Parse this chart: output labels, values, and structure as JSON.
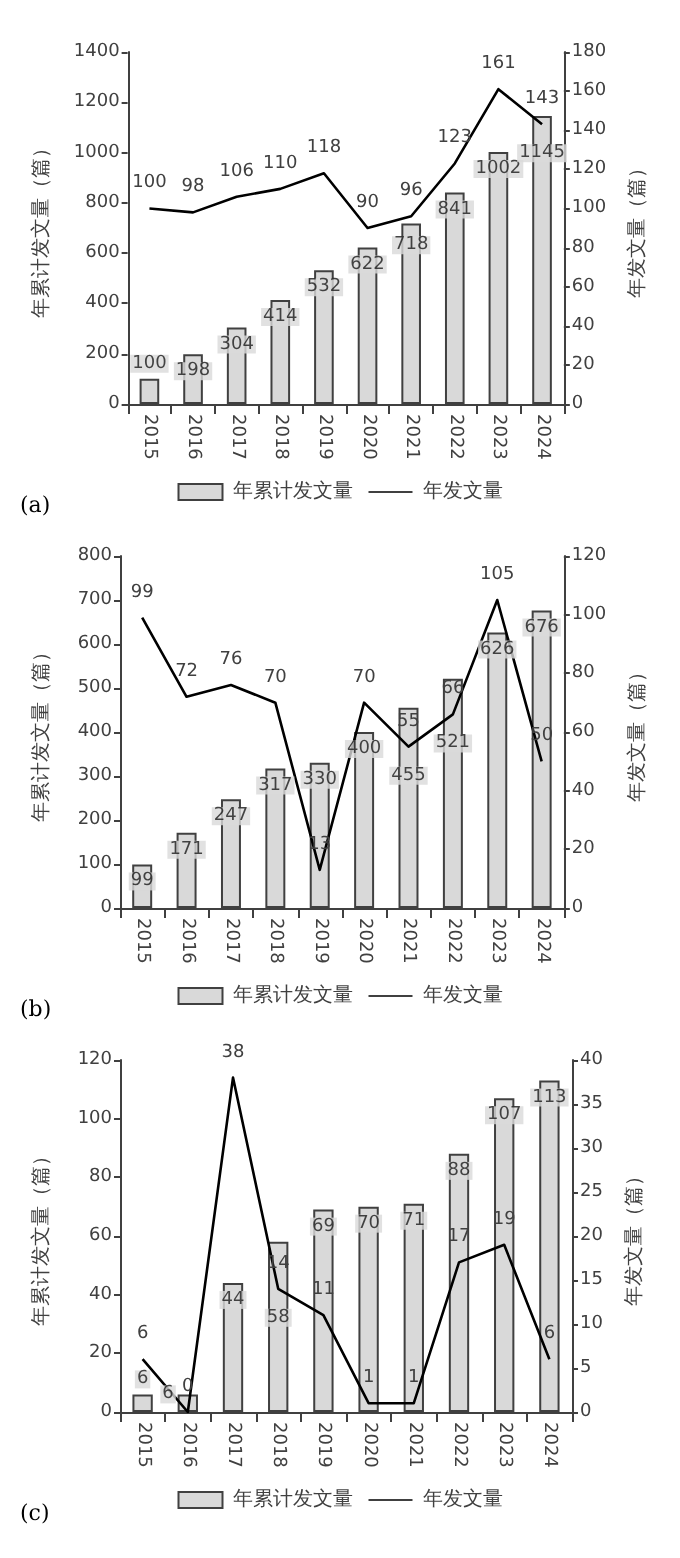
{
  "chart_data": [
    {
      "type": "bar",
      "categories": [
        "2015",
        "2016",
        "2017",
        "2018",
        "2019",
        "2020",
        "2021",
        "2022",
        "2023",
        "2024"
      ],
      "ylabel": "年累计发文量（篇）",
      "y2label": "年发文量（篇）",
      "ylim": [
        0,
        1400
      ],
      "yticks": [
        0,
        200,
        400,
        600,
        800,
        1000,
        1200,
        1400
      ],
      "y2lim": [
        0,
        180
      ],
      "y2ticks": [
        0,
        20,
        40,
        60,
        80,
        100,
        120,
        140,
        160,
        180
      ],
      "legend": "bottom",
      "grid": false,
      "data_labels": true,
      "marker": "none",
      "annotations": [
        "(a)"
      ],
      "series": [
        {
          "name": "年累计发文量",
          "type": "bar",
          "color": "#d9d9d9",
          "values": [
            100,
            198,
            304,
            414,
            532,
            622,
            718,
            841,
            1002,
            1145
          ]
        },
        {
          "name": "年发文量",
          "type": "line",
          "axis": "y2",
          "color": "#000000",
          "values": [
            100,
            98,
            106,
            110,
            118,
            90,
            96,
            123,
            161,
            143
          ]
        }
      ]
    },
    {
      "type": "bar",
      "categories": [
        "2015",
        "2016",
        "2017",
        "2018",
        "2019",
        "2020",
        "2021",
        "2022",
        "2023",
        "2024"
      ],
      "ylabel": "年累计发文量（篇）",
      "y2label": "年发文量（篇）",
      "ylim": [
        0,
        800
      ],
      "yticks": [
        0,
        100,
        200,
        300,
        400,
        500,
        600,
        700,
        800
      ],
      "y2lim": [
        0,
        120
      ],
      "y2ticks": [
        0,
        20,
        40,
        60,
        80,
        100,
        120
      ],
      "legend": "bottom",
      "grid": false,
      "data_labels": true,
      "marker": "none",
      "annotations": [
        "(b)"
      ],
      "series": [
        {
          "name": "年累计发文量",
          "type": "bar",
          "color": "#d9d9d9",
          "values": [
            99,
            171,
            247,
            317,
            330,
            400,
            455,
            521,
            626,
            676
          ]
        },
        {
          "name": "年发文量",
          "type": "line",
          "axis": "y2",
          "color": "#000000",
          "values": [
            99,
            72,
            76,
            70,
            13,
            70,
            55,
            66,
            105,
            50
          ]
        }
      ]
    },
    {
      "type": "bar",
      "categories": [
        "2015",
        "2016",
        "2017",
        "2018",
        "2019",
        "2020",
        "2021",
        "2022",
        "2023",
        "2024"
      ],
      "ylabel": "年累计发文量（篇）",
      "y2label": "年发文量（篇）",
      "ylim": [
        0,
        120
      ],
      "yticks": [
        0,
        20,
        40,
        60,
        80,
        100,
        120
      ],
      "y2lim": [
        0,
        40
      ],
      "y2ticks": [
        0,
        5,
        10,
        15,
        20,
        25,
        30,
        35,
        40
      ],
      "legend": "bottom",
      "grid": false,
      "data_labels": true,
      "marker": "none",
      "annotations": [
        "(c)"
      ],
      "series": [
        {
          "name": "年累计发文量",
          "type": "bar",
          "color": "#d9d9d9",
          "values": [
            6,
            6,
            44,
            58,
            69,
            70,
            71,
            88,
            107,
            113
          ]
        },
        {
          "name": "年发文量",
          "type": "line",
          "axis": "y2",
          "color": "#000000",
          "values": [
            6,
            0,
            38,
            14,
            11,
            1,
            1,
            17,
            19,
            6
          ]
        }
      ]
    }
  ]
}
